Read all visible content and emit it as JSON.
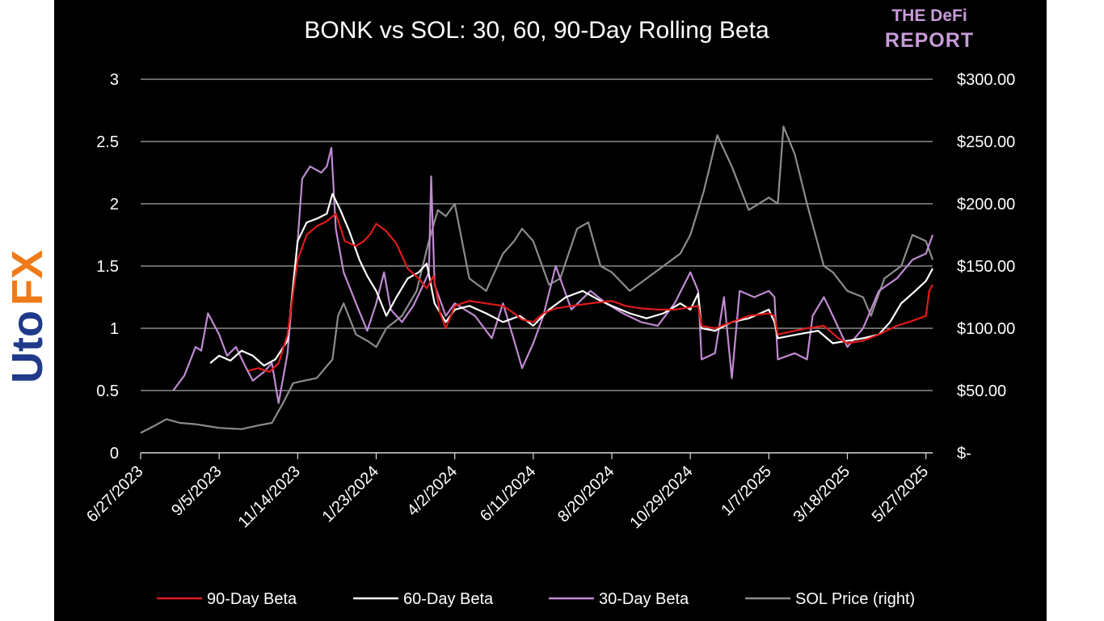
{
  "watermark": {
    "text": "UtoFX",
    "colors": {
      "blue": "#1f3a8a",
      "orange": "#f07a1a"
    }
  },
  "brand": {
    "line1": "THE DeFi",
    "line2": "REPORT",
    "color": "#c89bd9"
  },
  "chart_data": {
    "type": "line",
    "title": "BONK vs SOL: 30, 60, 90-Day Rolling Beta",
    "x_range": [
      "2023-06-27",
      "2025-06-02"
    ],
    "x_ticks": [
      "6/27/2023",
      "9/5/2023",
      "11/14/2023",
      "1/23/2024",
      "4/2/2024",
      "6/11/2024",
      "8/20/2024",
      "10/29/2024",
      "1/7/2025",
      "3/18/2025",
      "5/27/2025"
    ],
    "y_left": {
      "range": [
        0,
        3
      ],
      "ticks": [
        "0",
        "0.5",
        "1",
        "1.5",
        "2",
        "2.5",
        "3"
      ]
    },
    "y_right": {
      "range": [
        0,
        300
      ],
      "ticks": [
        "$-",
        "$50.00",
        "$100.00",
        "$150.00",
        "$200.00",
        "$250.00",
        "$300.00"
      ]
    },
    "grid": true,
    "legend_position": "bottom",
    "series": [
      {
        "name": "90-Day Beta",
        "color": "#e01b1b",
        "axis": "left",
        "points": [
          [
            "2023-10-01",
            0.66
          ],
          [
            "2023-10-10",
            0.68
          ],
          [
            "2023-10-20",
            0.65
          ],
          [
            "2023-10-28",
            0.72
          ],
          [
            "2023-11-05",
            0.95
          ],
          [
            "2023-11-14",
            1.55
          ],
          [
            "2023-11-22",
            1.75
          ],
          [
            "2023-12-01",
            1.82
          ],
          [
            "2023-12-10",
            1.86
          ],
          [
            "2023-12-18",
            1.92
          ],
          [
            "2023-12-26",
            1.7
          ],
          [
            "2024-01-05",
            1.66
          ],
          [
            "2024-01-12",
            1.7
          ],
          [
            "2024-01-18",
            1.76
          ],
          [
            "2024-01-23",
            1.84
          ],
          [
            "2024-02-01",
            1.78
          ],
          [
            "2024-02-10",
            1.68
          ],
          [
            "2024-02-20",
            1.48
          ],
          [
            "2024-03-01",
            1.4
          ],
          [
            "2024-03-08",
            1.32
          ],
          [
            "2024-03-14",
            1.42
          ],
          [
            "2024-03-20",
            1.12
          ],
          [
            "2024-03-25",
            1.0
          ],
          [
            "2024-04-02",
            1.18
          ],
          [
            "2024-04-15",
            1.22
          ],
          [
            "2024-04-30",
            1.2
          ],
          [
            "2024-05-15",
            1.18
          ],
          [
            "2024-05-25",
            1.12
          ],
          [
            "2024-06-01",
            1.07
          ],
          [
            "2024-06-11",
            1.05
          ],
          [
            "2024-06-20",
            1.12
          ],
          [
            "2024-07-01",
            1.16
          ],
          [
            "2024-07-15",
            1.18
          ],
          [
            "2024-08-01",
            1.2
          ],
          [
            "2024-08-20",
            1.22
          ],
          [
            "2024-09-01",
            1.18
          ],
          [
            "2024-09-15",
            1.16
          ],
          [
            "2024-10-01",
            1.15
          ],
          [
            "2024-10-15",
            1.15
          ],
          [
            "2024-10-29",
            1.17
          ],
          [
            "2024-11-05",
            1.18
          ],
          [
            "2024-11-08",
            1.02
          ],
          [
            "2024-11-20",
            1.0
          ],
          [
            "2024-12-05",
            1.05
          ],
          [
            "2024-12-20",
            1.1
          ],
          [
            "2025-01-07",
            1.12
          ],
          [
            "2025-01-12",
            1.1
          ],
          [
            "2025-01-15",
            0.95
          ],
          [
            "2025-01-30",
            0.98
          ],
          [
            "2025-02-10",
            1.0
          ],
          [
            "2025-02-25",
            1.02
          ],
          [
            "2025-03-10",
            0.92
          ],
          [
            "2025-03-18",
            0.88
          ],
          [
            "2025-04-01",
            0.9
          ],
          [
            "2025-04-15",
            0.95
          ],
          [
            "2025-05-01",
            1.02
          ],
          [
            "2025-05-15",
            1.06
          ],
          [
            "2025-05-27",
            1.1
          ],
          [
            "2025-05-30",
            1.3
          ],
          [
            "2025-06-02",
            1.35
          ]
        ]
      },
      {
        "name": "60-Day Beta",
        "color": "#ffffff",
        "axis": "left",
        "points": [
          [
            "2023-08-28",
            0.72
          ],
          [
            "2023-09-05",
            0.78
          ],
          [
            "2023-09-15",
            0.74
          ],
          [
            "2023-09-25",
            0.82
          ],
          [
            "2023-10-05",
            0.78
          ],
          [
            "2023-10-15",
            0.7
          ],
          [
            "2023-10-25",
            0.75
          ],
          [
            "2023-11-05",
            0.9
          ],
          [
            "2023-11-14",
            1.7
          ],
          [
            "2023-11-22",
            1.85
          ],
          [
            "2023-12-01",
            1.88
          ],
          [
            "2023-12-10",
            1.92
          ],
          [
            "2023-12-15",
            2.08
          ],
          [
            "2023-12-22",
            1.95
          ],
          [
            "2023-12-30",
            1.78
          ],
          [
            "2024-01-08",
            1.55
          ],
          [
            "2024-01-15",
            1.42
          ],
          [
            "2024-01-23",
            1.3
          ],
          [
            "2024-02-01",
            1.1
          ],
          [
            "2024-02-10",
            1.25
          ],
          [
            "2024-02-20",
            1.4
          ],
          [
            "2024-03-01",
            1.45
          ],
          [
            "2024-03-08",
            1.52
          ],
          [
            "2024-03-15",
            1.2
          ],
          [
            "2024-03-25",
            1.05
          ],
          [
            "2024-04-02",
            1.15
          ],
          [
            "2024-04-15",
            1.18
          ],
          [
            "2024-04-30",
            1.12
          ],
          [
            "2024-05-15",
            1.05
          ],
          [
            "2024-05-30",
            1.1
          ],
          [
            "2024-06-11",
            1.02
          ],
          [
            "2024-06-25",
            1.15
          ],
          [
            "2024-07-10",
            1.25
          ],
          [
            "2024-07-25",
            1.3
          ],
          [
            "2024-08-10",
            1.22
          ],
          [
            "2024-08-20",
            1.18
          ],
          [
            "2024-09-05",
            1.12
          ],
          [
            "2024-09-20",
            1.08
          ],
          [
            "2024-10-05",
            1.12
          ],
          [
            "2024-10-20",
            1.2
          ],
          [
            "2024-10-29",
            1.15
          ],
          [
            "2024-11-05",
            1.28
          ],
          [
            "2024-11-08",
            1.0
          ],
          [
            "2024-11-20",
            0.98
          ],
          [
            "2024-12-05",
            1.05
          ],
          [
            "2024-12-20",
            1.08
          ],
          [
            "2025-01-07",
            1.15
          ],
          [
            "2025-01-12",
            1.05
          ],
          [
            "2025-01-15",
            0.92
          ],
          [
            "2025-02-01",
            0.95
          ],
          [
            "2025-02-20",
            0.98
          ],
          [
            "2025-03-05",
            0.88
          ],
          [
            "2025-03-18",
            0.9
          ],
          [
            "2025-04-01",
            0.92
          ],
          [
            "2025-04-15",
            0.95
          ],
          [
            "2025-04-25",
            1.05
          ],
          [
            "2025-05-05",
            1.2
          ],
          [
            "2025-05-15",
            1.28
          ],
          [
            "2025-05-27",
            1.38
          ],
          [
            "2025-06-02",
            1.48
          ]
        ]
      },
      {
        "name": "30-Day Beta",
        "color": "#c08ad2",
        "axis": "left",
        "points": [
          [
            "2023-07-26",
            0.5
          ],
          [
            "2023-08-05",
            0.62
          ],
          [
            "2023-08-15",
            0.85
          ],
          [
            "2023-08-20",
            0.82
          ],
          [
            "2023-08-26",
            1.12
          ],
          [
            "2023-09-05",
            0.95
          ],
          [
            "2023-09-12",
            0.78
          ],
          [
            "2023-09-20",
            0.85
          ],
          [
            "2023-09-28",
            0.7
          ],
          [
            "2023-10-05",
            0.58
          ],
          [
            "2023-10-15",
            0.65
          ],
          [
            "2023-10-22",
            0.72
          ],
          [
            "2023-10-28",
            0.4
          ],
          [
            "2023-11-05",
            0.8
          ],
          [
            "2023-11-10",
            1.35
          ],
          [
            "2023-11-14",
            1.7
          ],
          [
            "2023-11-18",
            2.2
          ],
          [
            "2023-11-25",
            2.3
          ],
          [
            "2023-12-05",
            2.25
          ],
          [
            "2023-12-10",
            2.3
          ],
          [
            "2023-12-14",
            2.45
          ],
          [
            "2023-12-18",
            1.8
          ],
          [
            "2023-12-25",
            1.45
          ],
          [
            "2024-01-05",
            1.2
          ],
          [
            "2024-01-15",
            0.98
          ],
          [
            "2024-01-23",
            1.2
          ],
          [
            "2024-01-30",
            1.45
          ],
          [
            "2024-02-05",
            1.15
          ],
          [
            "2024-02-15",
            1.05
          ],
          [
            "2024-02-25",
            1.18
          ],
          [
            "2024-03-05",
            1.35
          ],
          [
            "2024-03-10",
            1.45
          ],
          [
            "2024-03-12",
            2.22
          ],
          [
            "2024-03-15",
            1.35
          ],
          [
            "2024-03-25",
            1.1
          ],
          [
            "2024-04-02",
            1.2
          ],
          [
            "2024-04-20",
            1.1
          ],
          [
            "2024-05-05",
            0.92
          ],
          [
            "2024-05-15",
            1.2
          ],
          [
            "2024-05-25",
            0.9
          ],
          [
            "2024-06-01",
            0.68
          ],
          [
            "2024-06-11",
            0.88
          ],
          [
            "2024-06-20",
            1.1
          ],
          [
            "2024-07-01",
            1.5
          ],
          [
            "2024-07-15",
            1.15
          ],
          [
            "2024-08-01",
            1.3
          ],
          [
            "2024-08-15",
            1.2
          ],
          [
            "2024-08-30",
            1.12
          ],
          [
            "2024-09-15",
            1.05
          ],
          [
            "2024-09-30",
            1.02
          ],
          [
            "2024-10-15",
            1.2
          ],
          [
            "2024-10-29",
            1.45
          ],
          [
            "2024-11-05",
            1.3
          ],
          [
            "2024-11-08",
            0.75
          ],
          [
            "2024-11-20",
            0.8
          ],
          [
            "2024-11-28",
            1.25
          ],
          [
            "2024-12-05",
            0.6
          ],
          [
            "2024-12-12",
            1.3
          ],
          [
            "2024-12-25",
            1.25
          ],
          [
            "2025-01-07",
            1.3
          ],
          [
            "2025-01-12",
            1.25
          ],
          [
            "2025-01-15",
            0.75
          ],
          [
            "2025-01-30",
            0.8
          ],
          [
            "2025-02-10",
            0.75
          ],
          [
            "2025-02-15",
            1.1
          ],
          [
            "2025-02-25",
            1.25
          ],
          [
            "2025-03-05",
            1.1
          ],
          [
            "2025-03-18",
            0.85
          ],
          [
            "2025-04-01",
            1.0
          ],
          [
            "2025-04-15",
            1.3
          ],
          [
            "2025-05-01",
            1.4
          ],
          [
            "2025-05-15",
            1.55
          ],
          [
            "2025-05-27",
            1.6
          ],
          [
            "2025-06-02",
            1.75
          ]
        ]
      },
      {
        "name": "SOL Price (right)",
        "color": "#8c8c8c",
        "axis": "right",
        "points": [
          [
            "2023-06-27",
            16
          ],
          [
            "2023-07-10",
            22
          ],
          [
            "2023-07-20",
            27
          ],
          [
            "2023-08-01",
            24
          ],
          [
            "2023-08-15",
            23
          ],
          [
            "2023-09-05",
            20
          ],
          [
            "2023-09-25",
            19
          ],
          [
            "2023-10-10",
            22
          ],
          [
            "2023-10-22",
            24
          ],
          [
            "2023-11-01",
            40
          ],
          [
            "2023-11-10",
            56
          ],
          [
            "2023-11-20",
            58
          ],
          [
            "2023-12-01",
            60
          ],
          [
            "2023-12-15",
            75
          ],
          [
            "2023-12-20",
            110
          ],
          [
            "2023-12-25",
            120
          ],
          [
            "2024-01-05",
            95
          ],
          [
            "2024-01-15",
            90
          ],
          [
            "2024-01-23",
            85
          ],
          [
            "2024-02-01",
            100
          ],
          [
            "2024-02-15",
            110
          ],
          [
            "2024-02-28",
            130
          ],
          [
            "2024-03-10",
            170
          ],
          [
            "2024-03-18",
            195
          ],
          [
            "2024-03-25",
            190
          ],
          [
            "2024-04-02",
            200
          ],
          [
            "2024-04-15",
            140
          ],
          [
            "2024-04-30",
            130
          ],
          [
            "2024-05-15",
            160
          ],
          [
            "2024-05-25",
            170
          ],
          [
            "2024-06-01",
            180
          ],
          [
            "2024-06-11",
            170
          ],
          [
            "2024-06-25",
            135
          ],
          [
            "2024-07-05",
            140
          ],
          [
            "2024-07-20",
            180
          ],
          [
            "2024-07-30",
            185
          ],
          [
            "2024-08-10",
            150
          ],
          [
            "2024-08-20",
            145
          ],
          [
            "2024-09-05",
            130
          ],
          [
            "2024-09-20",
            140
          ],
          [
            "2024-10-05",
            150
          ],
          [
            "2024-10-20",
            160
          ],
          [
            "2024-10-29",
            175
          ],
          [
            "2024-11-10",
            210
          ],
          [
            "2024-11-22",
            255
          ],
          [
            "2024-12-05",
            230
          ],
          [
            "2024-12-20",
            195
          ],
          [
            "2025-01-07",
            205
          ],
          [
            "2025-01-15",
            200
          ],
          [
            "2025-01-20",
            262
          ],
          [
            "2025-01-30",
            240
          ],
          [
            "2025-02-10",
            200
          ],
          [
            "2025-02-25",
            150
          ],
          [
            "2025-03-05",
            145
          ],
          [
            "2025-03-18",
            130
          ],
          [
            "2025-04-01",
            125
          ],
          [
            "2025-04-08",
            110
          ],
          [
            "2025-04-20",
            140
          ],
          [
            "2025-05-05",
            150
          ],
          [
            "2025-05-15",
            175
          ],
          [
            "2025-05-27",
            170
          ],
          [
            "2025-06-02",
            155
          ]
        ]
      }
    ]
  }
}
